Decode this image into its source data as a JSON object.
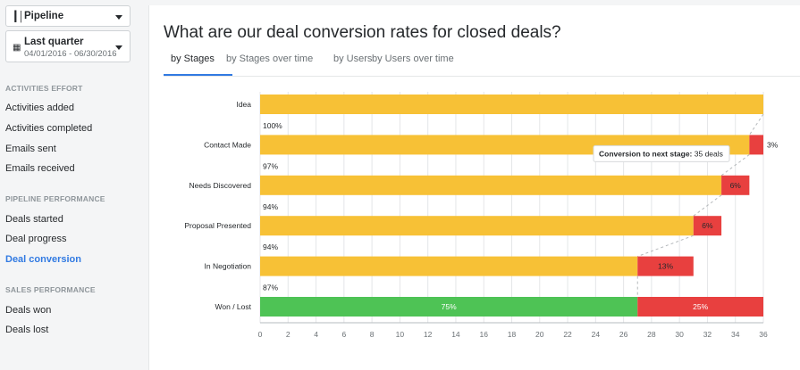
{
  "sidebar": {
    "pipeline_label": "Pipeline",
    "period_label": "Last quarter",
    "period_range": "04/01/2016 - 06/30/2016",
    "sections": [
      {
        "title": "ACTIVITIES EFFORT",
        "items": [
          "Activities added",
          "Activities completed",
          "Emails sent",
          "Emails received"
        ]
      },
      {
        "title": "PIPELINE PERFORMANCE",
        "items": [
          "Deals started",
          "Deal progress",
          "Deal conversion"
        ]
      },
      {
        "title": "SALES PERFORMANCE",
        "items": [
          "Deals won",
          "Deals lost"
        ]
      }
    ],
    "active_item": "Deal conversion"
  },
  "main": {
    "title": "What are our deal conversion rates for closed deals?",
    "tabs": [
      "by Stages",
      "by Stages over time",
      "by Users",
      "by Users over time"
    ],
    "active_tab": 0
  },
  "tooltip": {
    "bold": "Conversion to next stage:",
    "text": "35 deals"
  },
  "chart_data": {
    "type": "bar",
    "orientation": "horizontal",
    "stacked": true,
    "categories": [
      "Idea",
      "Contact Made",
      "Needs Discovered",
      "Proposal Presented",
      "In Negotiation",
      "Won / Lost"
    ],
    "series": [
      {
        "values": [
          36,
          35,
          33,
          31,
          27,
          27
        ],
        "labels": [
          "100%",
          "97%",
          "94%",
          "94%",
          "87%",
          "75%"
        ]
      },
      {
        "values": [
          0,
          1,
          2,
          2,
          4,
          9
        ],
        "labels": [
          "",
          "3%",
          "6%",
          "6%",
          "13%",
          "25%"
        ]
      }
    ],
    "xlim": [
      0,
      36
    ],
    "xticks": [
      0,
      2,
      4,
      6,
      8,
      10,
      12,
      14,
      16,
      18,
      20,
      22,
      24,
      26,
      28,
      30,
      32,
      34,
      36
    ],
    "colors": {
      "bar": "#f7c136",
      "drop": "#e8403f",
      "won": "#4ec355",
      "grid": "#e4e6e8",
      "axis": "#b6bbbf",
      "dash": "#b5b9bc"
    }
  }
}
